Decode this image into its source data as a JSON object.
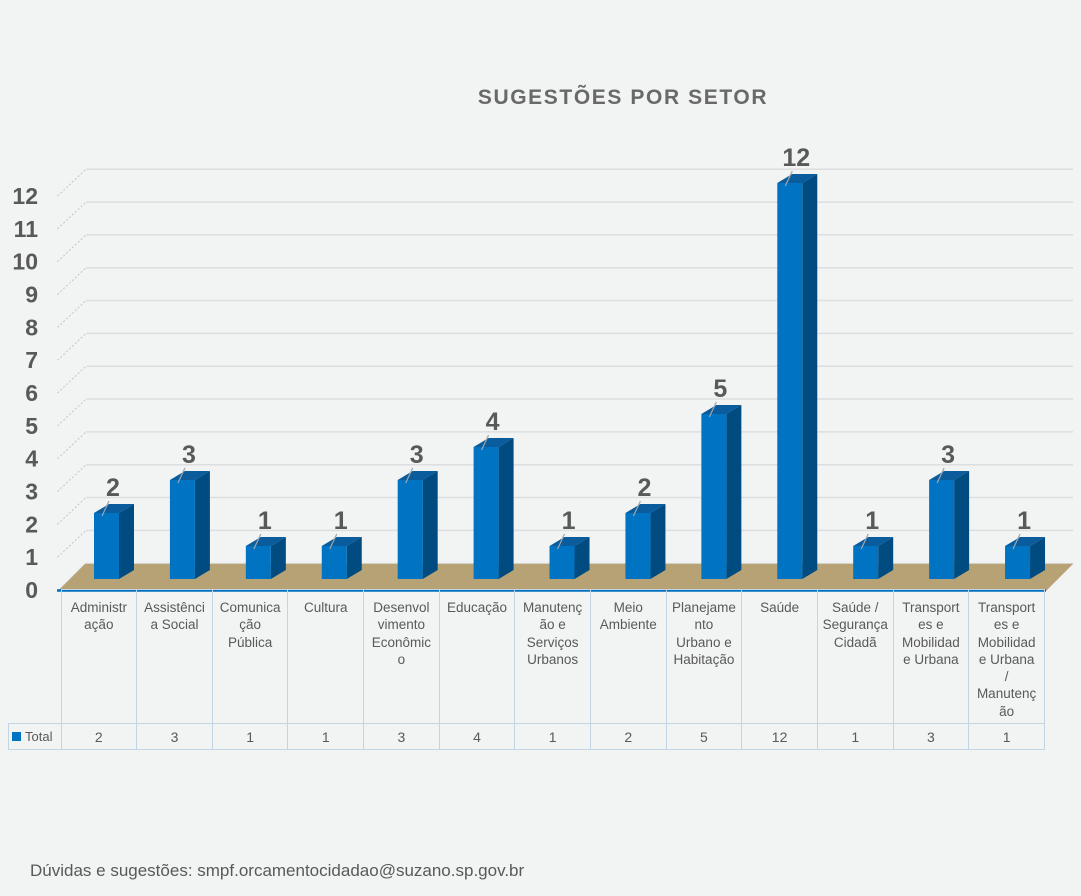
{
  "title": "SUGESTÕES POR SETOR",
  "footer": "Dúvidas e sugestões: smpf.orcamentocidadao@suzano.sp.gov.br",
  "colors": {
    "background": "#f2f3f3",
    "bar_front": "#0074c2",
    "bar_side": "#004b80",
    "bar_top": "#0a5c9c",
    "floor": "#b7a276",
    "floor_edge": "#e8eff6",
    "axis_line": "#0070c0",
    "grid": "#dddee0",
    "grid_dash": "#c4c5c7",
    "leader": "#a0a6ac",
    "text": "#595959",
    "table_border": "#c3d4e3"
  },
  "chart_data": {
    "type": "bar",
    "style": "3d-column",
    "title": "SUGESTÕES POR SETOR",
    "categories": [
      "Administração",
      "Assistência Social",
      "Comunicação Pública",
      "Cultura",
      "Desenvolvimento Econômico",
      "Educação",
      "Manutenção e Serviços Urbanos",
      "Meio Ambiente",
      "Planejamento Urbano e Habitação",
      "Saúde",
      "Saúde / Segurança Cidadã",
      "Transportes e Mobilidade Urbana",
      "Transportes e Mobilidade Urbana / Manutenção"
    ],
    "series": [
      {
        "name": "Total",
        "values": [
          2,
          3,
          1,
          1,
          3,
          4,
          1,
          2,
          5,
          12,
          1,
          3,
          1
        ]
      }
    ],
    "ylim": [
      0,
      12
    ],
    "yticks": [
      0,
      1,
      2,
      3,
      4,
      5,
      6,
      7,
      8,
      9,
      10,
      11,
      12
    ],
    "grid": true,
    "data_labels": true,
    "legend_position": "table-left"
  },
  "table": {
    "row_label": "Total",
    "column_headers": [
      "Administr\nação",
      "Assistênci\na Social",
      "Comunica\nção\nPública",
      "Cultura",
      "Desenvol\nvimento\nEconômic\no",
      "Educação",
      "Manutenç\não e\nServiços\nUrbanos",
      "Meio\nAmbiente",
      "Planejame\nnto\nUrbano e\nHabitação",
      "Saúde",
      "Saúde /\nSegurança\nCidadã",
      "Transport\nes e\nMobilidad\ne Urbana",
      "Transport\nes e\nMobilidad\ne Urbana\n/\nManutenç\não"
    ]
  }
}
